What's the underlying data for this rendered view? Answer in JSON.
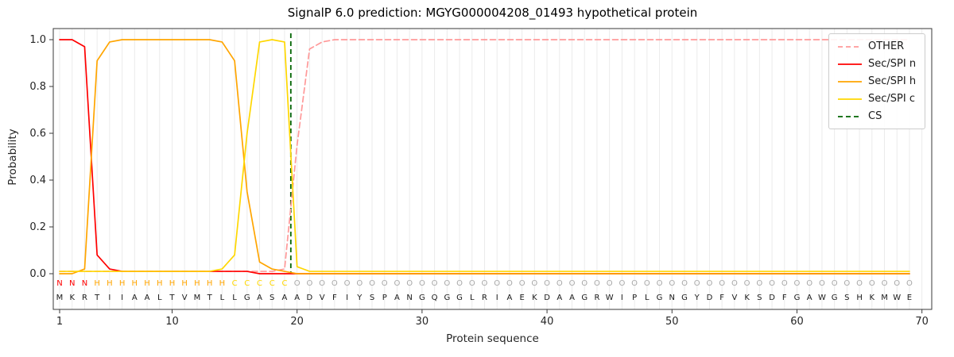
{
  "chart_data": {
    "type": "line",
    "title": "SignalP 6.0 prediction: MGYG000004208_01493 hypothetical protein",
    "xlabel": "Protein sequence",
    "ylabel": "Probability",
    "xticks": [
      1,
      10,
      20,
      30,
      40,
      50,
      60,
      70
    ],
    "yticks": [
      0.0,
      0.2,
      0.4,
      0.6,
      0.8,
      1.0
    ],
    "ylim": [
      -0.15,
      1.05
    ],
    "grid": "vertical-per-residue",
    "legend_position": "upper-right",
    "series": [
      {
        "name": "OTHER",
        "color": "#ff9999",
        "style": "dashed",
        "values": [
          0.01,
          0.01,
          0.01,
          0.01,
          0.01,
          0.01,
          0.01,
          0.01,
          0.01,
          0.01,
          0.01,
          0.01,
          0.01,
          0.01,
          0.01,
          0.01,
          0.01,
          0.01,
          0.02,
          0.55,
          0.96,
          0.99,
          1.0,
          1.0,
          1.0,
          1.0,
          1.0,
          1.0,
          1.0,
          1.0,
          1.0,
          1.0,
          1.0,
          1.0,
          1.0,
          1.0,
          1.0,
          1.0,
          1.0,
          1.0,
          1.0,
          1.0,
          1.0,
          1.0,
          1.0,
          1.0,
          1.0,
          1.0,
          1.0,
          1.0,
          1.0,
          1.0,
          1.0,
          1.0,
          1.0,
          1.0,
          1.0,
          1.0,
          1.0,
          1.0,
          1.0,
          1.0,
          1.0,
          1.0,
          1.0,
          1.0,
          1.0,
          1.0,
          1.0
        ]
      },
      {
        "name": "Sec/SPI n",
        "color": "#ff0000",
        "style": "solid",
        "values": [
          1.0,
          1.0,
          0.97,
          0.08,
          0.02,
          0.01,
          0.01,
          0.01,
          0.01,
          0.01,
          0.01,
          0.01,
          0.01,
          0.01,
          0.01,
          0.01,
          0.0,
          0.0,
          0.0,
          0.0,
          0.0,
          0.0,
          0.0,
          0.0,
          0.0,
          0.0,
          0.0,
          0.0,
          0.0,
          0.0,
          0.0,
          0.0,
          0.0,
          0.0,
          0.0,
          0.0,
          0.0,
          0.0,
          0.0,
          0.0,
          0.0,
          0.0,
          0.0,
          0.0,
          0.0,
          0.0,
          0.0,
          0.0,
          0.0,
          0.0,
          0.0,
          0.0,
          0.0,
          0.0,
          0.0,
          0.0,
          0.0,
          0.0,
          0.0,
          0.0,
          0.0,
          0.0,
          0.0,
          0.0,
          0.0,
          0.0,
          0.0,
          0.0,
          0.0
        ]
      },
      {
        "name": "Sec/SPI h",
        "color": "#ffa500",
        "style": "solid",
        "values": [
          0.0,
          0.0,
          0.02,
          0.91,
          0.99,
          1.0,
          1.0,
          1.0,
          1.0,
          1.0,
          1.0,
          1.0,
          1.0,
          0.99,
          0.91,
          0.35,
          0.05,
          0.02,
          0.01,
          0.0,
          0.0,
          0.0,
          0.0,
          0.0,
          0.0,
          0.0,
          0.0,
          0.0,
          0.0,
          0.0,
          0.0,
          0.0,
          0.0,
          0.0,
          0.0,
          0.0,
          0.0,
          0.0,
          0.0,
          0.0,
          0.0,
          0.0,
          0.0,
          0.0,
          0.0,
          0.0,
          0.0,
          0.0,
          0.0,
          0.0,
          0.0,
          0.0,
          0.0,
          0.0,
          0.0,
          0.0,
          0.0,
          0.0,
          0.0,
          0.0,
          0.0,
          0.0,
          0.0,
          0.0,
          0.0,
          0.0,
          0.0,
          0.0,
          0.0
        ]
      },
      {
        "name": "Sec/SPI c",
        "color": "#ffd700",
        "style": "solid",
        "values": [
          0.01,
          0.01,
          0.01,
          0.01,
          0.01,
          0.01,
          0.01,
          0.01,
          0.01,
          0.01,
          0.01,
          0.01,
          0.01,
          0.02,
          0.08,
          0.6,
          0.99,
          1.0,
          0.99,
          0.03,
          0.01,
          0.01,
          0.01,
          0.01,
          0.01,
          0.01,
          0.01,
          0.01,
          0.01,
          0.01,
          0.01,
          0.01,
          0.01,
          0.01,
          0.01,
          0.01,
          0.01,
          0.01,
          0.01,
          0.01,
          0.01,
          0.01,
          0.01,
          0.01,
          0.01,
          0.01,
          0.01,
          0.01,
          0.01,
          0.01,
          0.01,
          0.01,
          0.01,
          0.01,
          0.01,
          0.01,
          0.01,
          0.01,
          0.01,
          0.01,
          0.01,
          0.01,
          0.01,
          0.01,
          0.01,
          0.01,
          0.01,
          0.01,
          0.01
        ]
      },
      {
        "name": "CS",
        "color": "#006400",
        "style": "dashed-vertical",
        "position": 19.5
      }
    ],
    "sequence": [
      "M",
      "K",
      "R",
      "T",
      "I",
      "I",
      "A",
      "A",
      "L",
      "T",
      "V",
      "M",
      "T",
      "L",
      "L",
      "G",
      "A",
      "S",
      "A",
      "A",
      "D",
      "V",
      "F",
      "I",
      "Y",
      "S",
      "P",
      "A",
      "N",
      "G",
      "Q",
      "G",
      "G",
      "L",
      "R",
      "I",
      "A",
      "E",
      "K",
      "D",
      "A",
      "A",
      "G",
      "R",
      "W",
      "I",
      "P",
      "L",
      "G",
      "N",
      "G",
      "Y",
      "D",
      "F",
      "V",
      "K",
      "S",
      "D",
      "F",
      "G",
      "A",
      "W",
      "G",
      "S",
      "H",
      "K",
      "M",
      "W",
      "E"
    ],
    "region_labels": [
      "N",
      "N",
      "N",
      "H",
      "H",
      "H",
      "H",
      "H",
      "H",
      "H",
      "H",
      "H",
      "H",
      "H",
      "C",
      "C",
      "C",
      "C",
      "C",
      "O",
      "O",
      "O",
      "O",
      "O",
      "O",
      "O",
      "O",
      "O",
      "O",
      "O",
      "O",
      "O",
      "O",
      "O",
      "O",
      "O",
      "O",
      "O",
      "O",
      "O",
      "O",
      "O",
      "O",
      "O",
      "O",
      "O",
      "O",
      "O",
      "O",
      "O",
      "O",
      "O",
      "O",
      "O",
      "O",
      "O",
      "O",
      "O",
      "O",
      "O",
      "O",
      "O",
      "O",
      "O",
      "O",
      "O",
      "O",
      "O",
      "O"
    ],
    "region_colors": {
      "N": "#ff0000",
      "H": "#ffa500",
      "C": "#ffd700",
      "O": "#a8a8a8"
    }
  }
}
